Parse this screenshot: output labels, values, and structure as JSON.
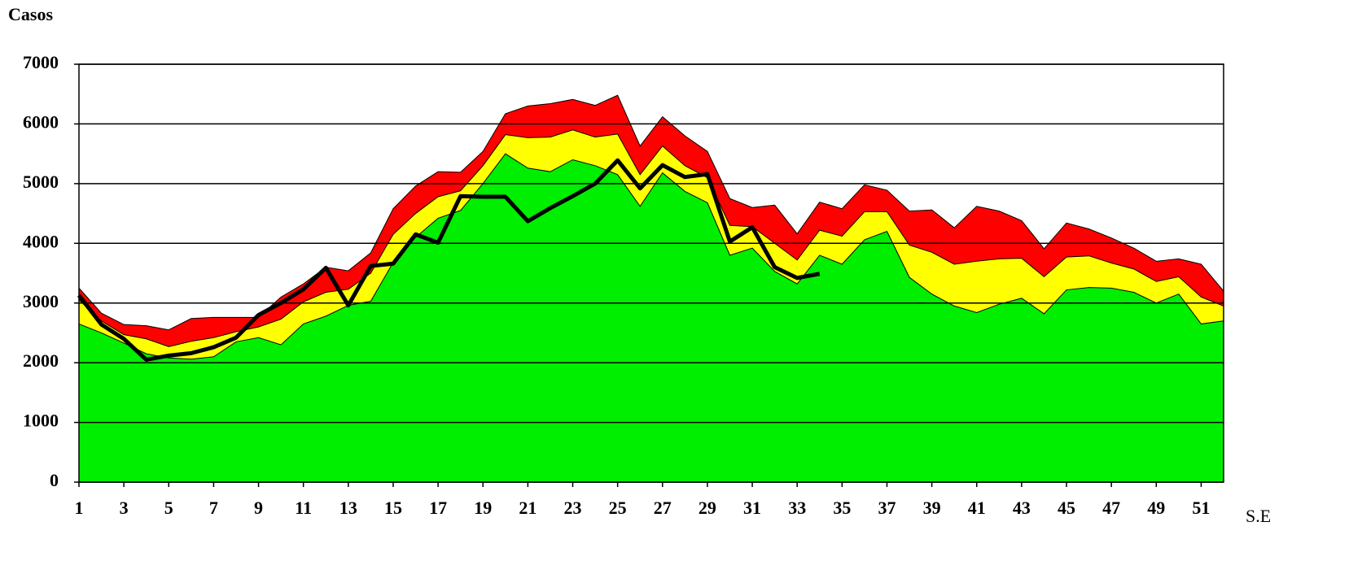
{
  "chart_data": {
    "type": "area",
    "y_label": "Casos",
    "x_label": "S.E",
    "x": [
      1,
      2,
      3,
      4,
      5,
      6,
      7,
      8,
      9,
      10,
      11,
      12,
      13,
      14,
      15,
      16,
      17,
      18,
      19,
      20,
      21,
      22,
      23,
      24,
      25,
      26,
      27,
      28,
      29,
      30,
      31,
      32,
      33,
      34,
      35,
      36,
      37,
      38,
      39,
      40,
      41,
      42,
      43,
      44,
      45,
      46,
      47,
      48,
      49,
      50,
      51,
      52
    ],
    "xlim": [
      1,
      52
    ],
    "xticks": [
      1,
      3,
      5,
      7,
      9,
      11,
      13,
      15,
      17,
      19,
      21,
      23,
      25,
      27,
      29,
      31,
      33,
      35,
      37,
      39,
      41,
      43,
      45,
      47,
      49,
      51
    ],
    "ylim": [
      0,
      7000
    ],
    "yticks": [
      0,
      1000,
      2000,
      3000,
      4000,
      5000,
      6000,
      7000
    ],
    "grid": true,
    "series": [
      {
        "color": "#ff0000",
        "values": [
          3250,
          2830,
          2640,
          2620,
          2550,
          2740,
          2760,
          2760,
          2760,
          3100,
          3320,
          3600,
          3540,
          3840,
          4580,
          4960,
          5200,
          5190,
          5540,
          6170,
          6300,
          6340,
          6410,
          6310,
          6480,
          5630,
          6120,
          5800,
          5540,
          4750,
          4600,
          4640,
          4160,
          4690,
          4580,
          4980,
          4890,
          4540,
          4560,
          4260,
          4620,
          4540,
          4380,
          3910,
          4340,
          4240,
          4090,
          3920,
          3700,
          3740,
          3650,
          3200
        ]
      },
      {
        "color": "#ffff00",
        "values": [
          3050,
          2700,
          2470,
          2400,
          2270,
          2360,
          2420,
          2520,
          2600,
          2730,
          3020,
          3180,
          3230,
          3500,
          4150,
          4500,
          4780,
          4880,
          5300,
          5820,
          5770,
          5780,
          5900,
          5780,
          5830,
          5150,
          5630,
          5300,
          5100,
          4300,
          4280,
          4000,
          3720,
          4220,
          4120,
          4530,
          4530,
          3970,
          3850,
          3650,
          3700,
          3740,
          3750,
          3440,
          3770,
          3790,
          3670,
          3570,
          3360,
          3440,
          3100,
          2950
        ]
      },
      {
        "color": "#00ee00",
        "values": [
          2650,
          2500,
          2330,
          2150,
          2080,
          2060,
          2100,
          2350,
          2420,
          2300,
          2650,
          2780,
          2960,
          3030,
          3680,
          4100,
          4420,
          4550,
          5000,
          5500,
          5260,
          5200,
          5400,
          5300,
          5150,
          4620,
          5180,
          4870,
          4680,
          3800,
          3920,
          3530,
          3320,
          3800,
          3650,
          4060,
          4200,
          3430,
          3150,
          2950,
          2840,
          2980,
          3080,
          2820,
          3220,
          3260,
          3250,
          3180,
          3000,
          3150,
          2650,
          2700
        ]
      },
      {
        "type": "line",
        "color": "#000000",
        "values": [
          3130,
          2640,
          2400,
          2050,
          2120,
          2160,
          2260,
          2420,
          2800,
          3000,
          3230,
          3590,
          2960,
          3620,
          3660,
          4150,
          4010,
          4790,
          4780,
          4780,
          4370,
          4590,
          4790,
          5000,
          5390,
          4920,
          5310,
          5110,
          5160,
          4030,
          4270,
          3600,
          3420,
          3490,
          null,
          null,
          null,
          null,
          null,
          null,
          null,
          null,
          null,
          null,
          null,
          null,
          null,
          null,
          null,
          null,
          null,
          null
        ]
      }
    ]
  }
}
